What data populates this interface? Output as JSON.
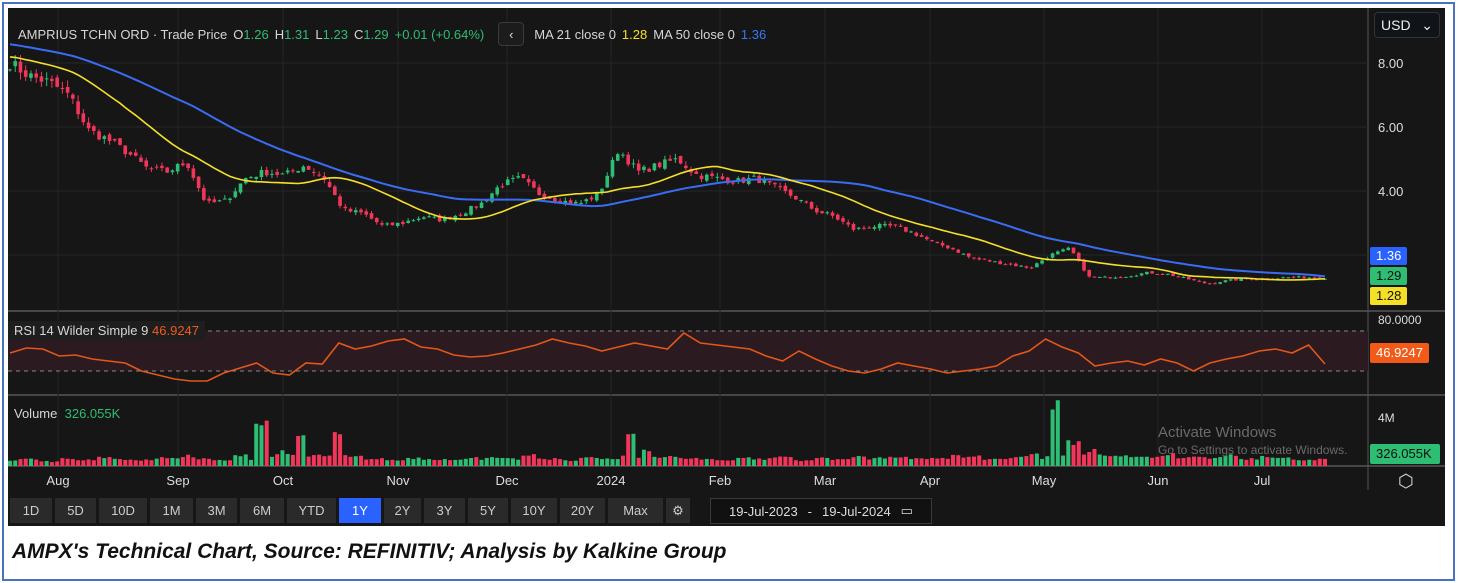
{
  "header": {
    "instrument": "AMPRIUS TCHN ORD · Trade Price",
    "open_label": "O",
    "open": "1.26",
    "high_label": "H",
    "high": "1.31",
    "low_label": "L",
    "low": "1.23",
    "close_label": "C",
    "close": "1.29",
    "change": "+0.01 (+0.64%)",
    "ma21_label": "MA 21 close 0",
    "ma21": "1.28",
    "ma50_label": "MA 50 close 0",
    "ma50": "1.36"
  },
  "currency": "USD",
  "price_axis": [
    "8.00",
    "6.00",
    "4.00"
  ],
  "price_tags": {
    "ma50": "1.36",
    "close": "1.29",
    "ma21": "1.28"
  },
  "rsi": {
    "label": "RSI 14 Wilder Simple 9",
    "value": "46.9247",
    "axis_top": "80.0000",
    "tag": "46.9247"
  },
  "volume": {
    "label": "Volume",
    "value": "326.055K",
    "axis": "4M",
    "tag": "326.055K"
  },
  "months": [
    "Aug",
    "Sep",
    "Oct",
    "Nov",
    "Dec",
    "2024",
    "Feb",
    "Mar",
    "Apr",
    "May",
    "Jun",
    "Jul"
  ],
  "toolbar": {
    "ranges": [
      "1D",
      "5D",
      "10D",
      "1M",
      "3M",
      "6M",
      "YTD",
      "1Y",
      "2Y",
      "3Y",
      "5Y",
      "10Y",
      "20Y",
      "Max"
    ],
    "active": "1Y",
    "date_from": "19-Jul-2023",
    "date_sep": "-",
    "date_to": "19-Jul-2024"
  },
  "watermark": {
    "line1": "Activate Windows",
    "line2": "Go to Settings to activate Windows."
  },
  "caption": "AMPX's Technical Chart, Source: REFINITIV; Analysis by Kalkine Group",
  "colors": {
    "up": "#2dbd73",
    "down": "#f2365a",
    "ma21": "#f5e028",
    "ma50": "#3a6cf4",
    "rsi": "#e2571a"
  },
  "chart_data": {
    "type": "candlestick",
    "period": "19-Jul-2023 to 19-Jul-2024",
    "ylim": [
      0.6,
      9.5
    ],
    "weekly_close": [
      8.0,
      7.6,
      7.4,
      7.0,
      5.9,
      5.6,
      5.2,
      4.7,
      4.6,
      4.9,
      3.6,
      3.7,
      4.4,
      4.6,
      4.5,
      4.8,
      4.4,
      3.4,
      3.3,
      2.9,
      3.0,
      3.2,
      3.1,
      3.3,
      3.6,
      4.2,
      4.4,
      3.9,
      3.7,
      3.6,
      3.9,
      5.3,
      4.6,
      4.8,
      5.0,
      4.5,
      4.4,
      4.3,
      4.4,
      4.1,
      3.8,
      3.4,
      3.2,
      2.8,
      2.9,
      2.9,
      2.7,
      2.4,
      2.2,
      1.9,
      1.8,
      1.7,
      1.6,
      2.0,
      2.2,
      1.3,
      1.3,
      1.35,
      1.45,
      1.4,
      1.25,
      1.1,
      1.2,
      1.25,
      1.25,
      1.3,
      1.3,
      1.29
    ],
    "rsi_series": [
      58,
      63,
      62,
      55,
      56,
      52,
      50,
      48,
      40,
      36,
      32,
      30,
      30,
      38,
      43,
      48,
      38,
      36,
      48,
      47,
      68,
      62,
      65,
      70,
      72,
      64,
      62,
      56,
      54,
      55,
      58,
      62,
      66,
      72,
      68,
      65,
      60,
      64,
      68,
      65,
      62,
      78,
      68,
      66,
      64,
      62,
      55,
      50,
      60,
      52,
      45,
      40,
      38,
      42,
      48,
      45,
      42,
      38,
      40,
      42,
      45,
      55,
      60,
      72,
      64,
      58,
      45,
      48,
      50,
      46,
      52,
      48,
      40,
      48,
      52,
      55,
      60,
      62,
      58,
      66,
      47
    ],
    "volume_m": [
      0.5,
      0.6,
      0.4,
      0.7,
      0.5,
      0.8,
      0.6,
      0.5,
      0.7,
      0.9,
      0.6,
      0.5,
      1.0,
      3.7,
      1.2,
      2.6,
      0.9,
      2.6,
      0.8,
      0.6,
      0.5,
      0.7,
      0.6,
      0.5,
      0.8,
      0.7,
      0.6,
      0.9,
      0.6,
      0.5,
      0.7,
      0.6,
      2.8,
      1.5,
      0.8,
      0.7,
      0.6,
      0.5,
      0.7,
      0.6,
      0.8,
      0.5,
      0.7,
      0.6,
      0.9,
      0.7,
      0.8,
      0.6,
      0.7,
      0.9,
      0.8,
      0.6,
      0.7,
      1.0,
      5.1,
      2.0,
      1.4,
      1.0,
      0.9,
      0.8,
      1.1,
      0.8,
      0.7,
      0.9,
      0.6,
      0.8,
      0.7,
      0.5,
      0.6
    ]
  }
}
